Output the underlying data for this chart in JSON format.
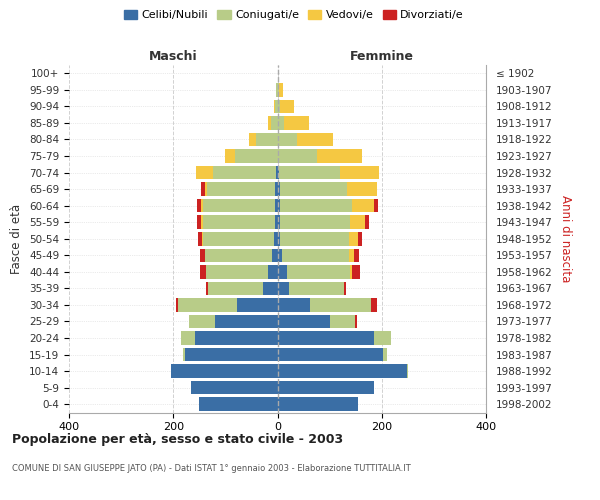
{
  "age_groups": [
    "0-4",
    "5-9",
    "10-14",
    "15-19",
    "20-24",
    "25-29",
    "30-34",
    "35-39",
    "40-44",
    "45-49",
    "50-54",
    "55-59",
    "60-64",
    "65-69",
    "70-74",
    "75-79",
    "80-84",
    "85-89",
    "90-94",
    "95-99",
    "100+"
  ],
  "birth_years": [
    "1998-2002",
    "1993-1997",
    "1988-1992",
    "1983-1987",
    "1978-1982",
    "1973-1977",
    "1968-1972",
    "1963-1967",
    "1958-1962",
    "1953-1957",
    "1948-1952",
    "1943-1947",
    "1938-1942",
    "1933-1937",
    "1928-1932",
    "1923-1927",
    "1918-1922",
    "1913-1917",
    "1908-1912",
    "1903-1907",
    "≤ 1902"
  ],
  "males": {
    "celibi": [
      150,
      165,
      205,
      178,
      158,
      120,
      78,
      28,
      18,
      10,
      7,
      5,
      5,
      5,
      2,
      0,
      0,
      0,
      0,
      0,
      0
    ],
    "coniugati": [
      0,
      0,
      0,
      3,
      28,
      50,
      112,
      105,
      120,
      130,
      135,
      138,
      138,
      130,
      122,
      82,
      42,
      12,
      4,
      2,
      0
    ],
    "vedovi": [
      0,
      0,
      0,
      0,
      0,
      0,
      0,
      0,
      0,
      0,
      3,
      3,
      4,
      4,
      32,
      18,
      12,
      6,
      2,
      1,
      0
    ],
    "divorziati": [
      0,
      0,
      0,
      0,
      0,
      0,
      5,
      5,
      10,
      8,
      8,
      8,
      8,
      8,
      0,
      0,
      0,
      0,
      0,
      0,
      0
    ]
  },
  "females": {
    "nubili": [
      155,
      185,
      248,
      202,
      185,
      100,
      62,
      22,
      18,
      8,
      5,
      5,
      5,
      5,
      2,
      0,
      0,
      0,
      0,
      0,
      0
    ],
    "coniugate": [
      0,
      0,
      3,
      8,
      32,
      48,
      118,
      105,
      122,
      130,
      132,
      135,
      138,
      128,
      118,
      75,
      38,
      12,
      4,
      2,
      0
    ],
    "vedove": [
      0,
      0,
      0,
      0,
      0,
      0,
      0,
      0,
      3,
      8,
      18,
      28,
      42,
      58,
      75,
      88,
      68,
      48,
      28,
      8,
      0
    ],
    "divorziate": [
      0,
      0,
      0,
      0,
      0,
      5,
      10,
      5,
      15,
      10,
      8,
      8,
      8,
      0,
      0,
      0,
      0,
      0,
      0,
      0,
      0
    ]
  },
  "colors": {
    "celibi": "#3a6ea5",
    "coniugati": "#b8cc88",
    "vedovi": "#f5c842",
    "divorziati": "#cc2222"
  },
  "legend_labels": [
    "Celibi/Nubili",
    "Coniugati/e",
    "Vedovi/e",
    "Divorziati/e"
  ],
  "xlim": 400,
  "title": "Popolazione per età, sesso e stato civile - 2003",
  "subtitle": "COMUNE DI SAN GIUSEPPE JATO (PA) - Dati ISTAT 1° gennaio 2003 - Elaborazione TUTTITALIA.IT",
  "ylabel_left": "Fasce di età",
  "ylabel_right": "Anni di nascita",
  "xlabel_left": "Maschi",
  "xlabel_right": "Femmine",
  "bg_color": "#ffffff",
  "grid_color": "#cccccc"
}
